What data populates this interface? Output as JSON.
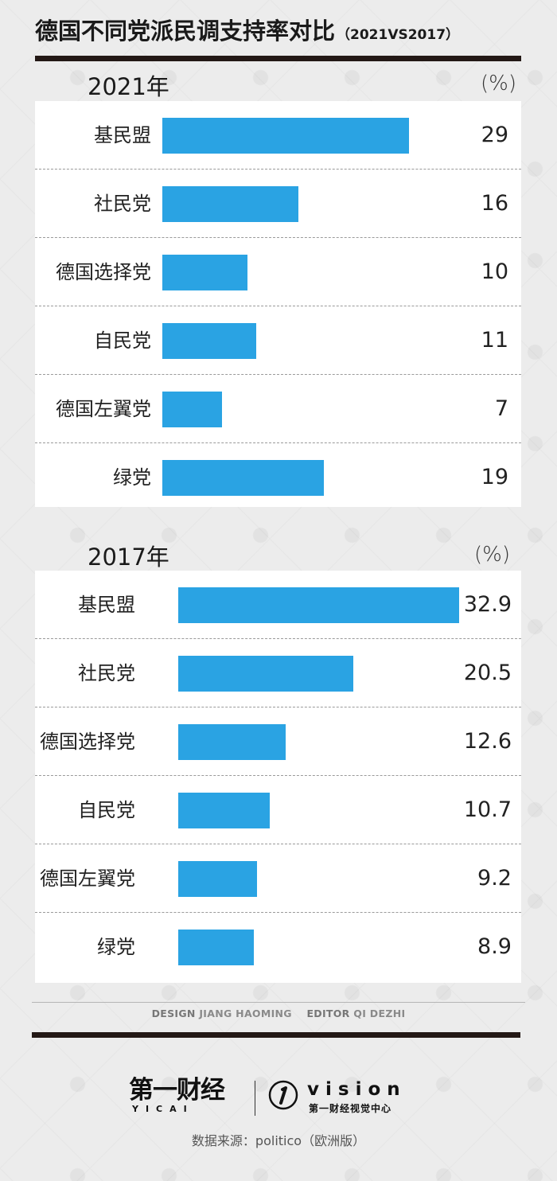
{
  "title": "德国不同党派民调支持率对比",
  "subtitle": "（2021VS2017）",
  "chart_data": [
    {
      "type": "bar",
      "title": "2021年",
      "unit": "(%)",
      "categories": [
        "基民盟",
        "社民党",
        "德国选择党",
        "自民党",
        "德国左翼党",
        "绿党"
      ],
      "values": [
        29,
        16,
        10,
        11,
        7,
        19
      ],
      "value_labels": [
        "29",
        "16",
        "10",
        "11",
        "7",
        "19"
      ],
      "orientation": "horizontal",
      "xlim": [
        0,
        40
      ],
      "bar_color": "#2aa3e3",
      "grid": false
    },
    {
      "type": "bar",
      "title": "2017年",
      "unit": "(%)",
      "categories": [
        "基民盟",
        "社民党",
        "德国选择党",
        "自民党",
        "德国左翼党",
        "绿党"
      ],
      "values": [
        32.9,
        20.5,
        12.6,
        10.7,
        9.2,
        8.9
      ],
      "value_labels": [
        "32.9",
        "20.5",
        "12.6",
        "10.7",
        "9.2",
        "8.9"
      ],
      "orientation": "horizontal",
      "xlim": [
        0,
        33
      ],
      "bar_color": "#2aa3e3",
      "grid": false
    }
  ],
  "credits": {
    "design_label": "DESIGN",
    "design_name": "JIANG HAOMING",
    "editor_label": "EDITOR",
    "editor_name": "QI DEZHI"
  },
  "logos": {
    "yicai_cn": "第一财经",
    "yicai_en": "YICAI",
    "vision_en": "vision",
    "vision_cn": "第一财经视觉中心"
  },
  "source": "数据来源：politico（欧洲版）"
}
